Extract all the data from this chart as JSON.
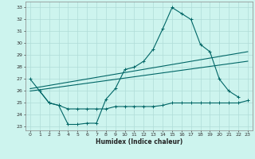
{
  "bg_color": "#cdf4ee",
  "grid_color": "#b0ddd8",
  "line_color": "#006666",
  "xlabel": "Humidex (Indice chaleur)",
  "xlim": [
    -0.5,
    23.5
  ],
  "ylim": [
    22.7,
    33.5
  ],
  "xticks": [
    0,
    1,
    2,
    3,
    4,
    5,
    6,
    7,
    8,
    9,
    10,
    11,
    12,
    13,
    14,
    15,
    16,
    17,
    18,
    19,
    20,
    21,
    22,
    23
  ],
  "yticks": [
    23,
    24,
    25,
    26,
    27,
    28,
    29,
    30,
    31,
    32,
    33
  ],
  "curve1_x": [
    0,
    1,
    2,
    3,
    4,
    5,
    6,
    7,
    8,
    9,
    10,
    11,
    12,
    13,
    14,
    15,
    16,
    17,
    18,
    19,
    20,
    21,
    22
  ],
  "curve1_y": [
    27.0,
    26.0,
    25.0,
    24.8,
    23.2,
    23.2,
    23.3,
    23.3,
    25.3,
    26.2,
    27.8,
    28.0,
    28.5,
    29.5,
    31.2,
    33.0,
    32.5,
    32.0,
    29.9,
    29.3,
    27.0,
    26.0,
    25.5
  ],
  "curve2_x": [
    1,
    2,
    3,
    4,
    5,
    6,
    7,
    8,
    9,
    10,
    11,
    12,
    13,
    14,
    15,
    16,
    17,
    18,
    19,
    20,
    21,
    22,
    23
  ],
  "curve2_y": [
    26.0,
    25.0,
    24.8,
    24.5,
    24.5,
    24.5,
    24.5,
    24.5,
    24.7,
    24.7,
    24.7,
    24.7,
    24.7,
    24.8,
    25.0,
    25.0,
    25.0,
    25.0,
    25.0,
    25.0,
    25.0,
    25.0,
    25.2
  ],
  "trend1_x": [
    0,
    23
  ],
  "trend1_y": [
    26.2,
    29.3
  ],
  "trend2_x": [
    0,
    23
  ],
  "trend2_y": [
    26.0,
    28.5
  ]
}
